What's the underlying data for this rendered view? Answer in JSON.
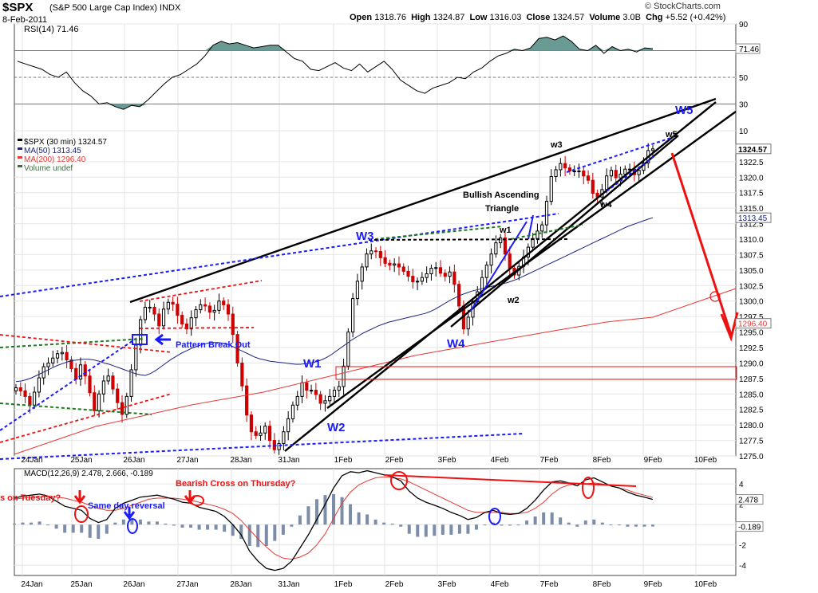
{
  "header": {
    "ticker": "$SPX",
    "name": "(S&P 500 Large Cap Index)",
    "exchange": "INDX",
    "date": "8-Feb-2011",
    "copyright": "© StockCharts.com",
    "open_label": "Open",
    "open": "1318.76",
    "high_label": "High",
    "high": "1324.87",
    "low_label": "Low",
    "low": "1316.03",
    "close_label": "Close",
    "close": "1324.57",
    "volume_label": "Volume",
    "volume": "3.0B",
    "chg_label": "Chg",
    "chg": "+5.52 (+0.42%)"
  },
  "colors": {
    "price_up": "#000000",
    "price_down": "#cc0000",
    "ma50": "#1a237e",
    "ma200": "#e53935",
    "rsi_fill": "#6a9a94",
    "annotation_blue": "#1a1aff",
    "annotation_red": "#ee1111"
  },
  "x_labels": [
    "24Jan",
    "25Jan",
    "26Jan",
    "27Jan",
    "28Jan",
    "31Jan",
    "1Feb",
    "2Feb",
    "3Feb",
    "4Feb",
    "7Feb",
    "8Feb",
    "9Feb",
    "10Feb"
  ],
  "chart_data": [
    {
      "type": "line",
      "panel": "rsi",
      "legend": "RSI(14) 71.46",
      "last_value_label": "71.46",
      "ylim": [
        10,
        90
      ],
      "y_ticks": [
        "90",
        "70",
        "50",
        "30",
        "10"
      ],
      "reference_lines": [
        70,
        50,
        30
      ],
      "values": [
        62,
        60,
        58,
        56,
        52,
        50,
        54,
        46,
        40,
        36,
        30,
        31,
        28,
        26,
        29,
        28,
        33,
        39,
        45,
        50,
        52,
        56,
        60,
        66,
        74,
        77,
        75,
        76,
        74,
        72,
        73,
        74,
        74,
        69,
        64,
        62,
        56,
        55,
        58,
        61,
        57,
        55,
        60,
        54,
        58,
        62,
        56,
        48,
        44,
        40,
        38,
        42,
        44,
        46,
        50,
        49,
        54,
        57,
        62,
        66,
        68,
        71,
        70,
        72,
        79,
        80,
        78,
        81,
        77,
        71,
        70,
        74,
        68,
        73,
        70,
        71,
        69,
        72,
        71.46
      ]
    },
    {
      "type": "candlestick",
      "panel": "price",
      "legend": [
        "$SPX (30 min) 1324.57",
        "MA(50) 1313.45",
        "MA(200) 1296.40",
        "Volume undef"
      ],
      "ylim": [
        1275,
        1327.5
      ],
      "y_ticks": [
        "1275.0",
        "1277.5",
        "1280.0",
        "1282.5",
        "1285.0",
        "1287.5",
        "1290.0",
        "1292.5",
        "1295.0",
        "1297.5",
        "1300.0",
        "1302.5",
        "1305.0",
        "1307.5",
        "1310.0",
        "1312.5",
        "1315.0",
        "1317.5",
        "1320.0",
        "1322.5"
      ],
      "price_tags": [
        {
          "label": "1324.57",
          "value": 1324.57,
          "style": "close"
        },
        {
          "label": "1313.45",
          "value": 1313.45,
          "style": "ma50"
        },
        {
          "label": "1296.40",
          "value": 1296.4,
          "style": "ma200"
        }
      ],
      "closes": [
        1286.0,
        1285.5,
        1284.6,
        1283.2,
        1285.3,
        1287.6,
        1289.4,
        1290.0,
        1290.8,
        1291.5,
        1291.7,
        1290.5,
        1289.1,
        1287.4,
        1289.7,
        1287.9,
        1285.2,
        1282.3,
        1285.0,
        1287.1,
        1287.9,
        1285.8,
        1283.6,
        1281.7,
        1284.6,
        1288.9,
        1292.9,
        1297.0,
        1299.0,
        1299.0,
        1297.9,
        1296.0,
        1298.7,
        1299.8,
        1299.5,
        1297.7,
        1296.3,
        1295.5,
        1297.3,
        1298.6,
        1299.4,
        1299.2,
        1298.2,
        1298.5,
        1300.0,
        1299.4,
        1297.9,
        1294.6,
        1290.0,
        1286.3,
        1281.6,
        1278.9,
        1278.3,
        1278.7,
        1279.8,
        1277.5,
        1276.0,
        1277.0,
        1278.9,
        1281.0,
        1283.2,
        1284.6,
        1286.8,
        1285.6,
        1285.6,
        1284.9,
        1283.5,
        1283.9,
        1284.6,
        1285.6,
        1286.2,
        1289.5,
        1295.0,
        1300.4,
        1303.2,
        1305.5,
        1307.6,
        1308.1,
        1308.0,
        1307.0,
        1306.1,
        1305.8,
        1306.0,
        1305.5,
        1304.8,
        1304.0,
        1303.1,
        1303.2,
        1303.8,
        1304.4,
        1305.3,
        1305.4,
        1304.5,
        1304.0,
        1304.7,
        1302.7,
        1299.2,
        1295.5,
        1297.4,
        1299.9,
        1301.5,
        1303.8,
        1305.8,
        1307.6,
        1309.4,
        1310.2,
        1307.6,
        1305.3,
        1304.2,
        1305.6,
        1307.1,
        1308.7,
        1310.1,
        1311.3,
        1312.3,
        1316.1,
        1320.1,
        1321.2,
        1322.2,
        1321.5,
        1321.0,
        1321.0,
        1321.0,
        1320.2,
        1319.5,
        1317.4,
        1316.8,
        1318.0,
        1320.2,
        1321.1,
        1319.9,
        1320.5,
        1321.3,
        1321.3,
        1320.4,
        1321.1,
        1322.3,
        1324.3,
        1324.57
      ],
      "ma50": [
        1287.0,
        1287.1,
        1287.3,
        1287.6,
        1288.0,
        1288.4,
        1288.8,
        1289.2,
        1289.6,
        1289.9,
        1290.2,
        1290.4,
        1290.5,
        1290.6,
        1290.6,
        1290.5,
        1290.3,
        1290.0,
        1289.8,
        1289.5,
        1289.2,
        1288.9,
        1288.6,
        1288.3,
        1288.1,
        1288.0,
        1288.3,
        1288.8,
        1289.4,
        1290.0,
        1290.6,
        1291.1,
        1291.6,
        1292.0,
        1292.4,
        1292.7,
        1293.0,
        1293.2,
        1293.3,
        1293.3,
        1293.2,
        1293.0,
        1292.6,
        1292.2,
        1291.8,
        1291.4,
        1291.0,
        1290.7,
        1290.5,
        1290.3,
        1290.2,
        1290.1,
        1290.0,
        1289.9,
        1289.8,
        1289.8,
        1289.9,
        1290.0,
        1290.2,
        1290.5,
        1290.9,
        1291.4,
        1292.0,
        1292.6,
        1293.2,
        1293.8,
        1294.3,
        1294.8,
        1295.2,
        1295.6,
        1296.0,
        1296.3,
        1296.6,
        1296.8,
        1297.0,
        1297.2,
        1297.4,
        1297.6,
        1297.8,
        1298.0,
        1298.3,
        1298.7,
        1299.2,
        1299.7,
        1300.2,
        1300.6,
        1301.0,
        1301.3,
        1301.6,
        1301.8,
        1302.0,
        1302.2,
        1302.4,
        1302.6,
        1302.8,
        1303.0,
        1303.3,
        1303.6,
        1304.0,
        1304.4,
        1304.8,
        1305.2,
        1305.6,
        1306.0,
        1306.4,
        1306.8,
        1307.2,
        1307.6,
        1308.0,
        1308.4,
        1308.8,
        1309.2,
        1309.6,
        1310.0,
        1310.4,
        1310.8,
        1311.2,
        1311.6,
        1312.0,
        1312.3,
        1312.6,
        1312.9,
        1313.2,
        1313.45
      ]
    },
    {
      "type": "line",
      "panel": "macd",
      "legend": [
        "MACD(12,26,9) 2.478, 2.666, -0.189"
      ],
      "last_value_labels": [
        "2.478",
        "-0.189"
      ],
      "ylim": [
        -5,
        5.5
      ],
      "y_ticks": [
        "4",
        "2",
        "0",
        "-2",
        "-4"
      ],
      "series": [
        {
          "name": "MACD(12,26,9)",
          "values": [
            2.6,
            2.8,
            2.9,
            3.0,
            2.8,
            2.3,
            1.8,
            1.6,
            1.4,
            0.6,
            0.2,
            0.5,
            1.6,
            2.1,
            2.4,
            2.7,
            2.8,
            2.9,
            2.7,
            2.5,
            2.2,
            2.1,
            1.7,
            1.5,
            1.3,
            0.8,
            0.0,
            -1.0,
            -2.6,
            -3.6,
            -4.3,
            -4.5,
            -4.3,
            -3.6,
            -2.3,
            -1.0,
            0.5,
            2.0,
            3.6,
            4.8,
            5.2,
            5.1,
            5.3,
            5.1,
            4.9,
            4.7,
            4.3,
            3.3,
            2.6,
            2.2,
            1.9,
            1.6,
            1.2,
            0.9,
            0.5,
            0.7,
            1.2,
            1.4,
            1.1,
            1.0,
            1.1,
            1.6,
            2.4,
            3.4,
            4.2,
            4.3,
            4.1,
            3.8,
            4.4,
            4.6,
            4.2,
            3.8,
            3.6,
            3.2,
            2.9,
            2.7,
            2.478
          ]
        },
        {
          "name": "Signal",
          "values": [
            2.5,
            2.6,
            2.7,
            2.7,
            2.8,
            2.7,
            2.6,
            2.4,
            2.2,
            1.9,
            1.6,
            1.4,
            1.4,
            1.6,
            1.9,
            2.2,
            2.5,
            2.6,
            2.6,
            2.6,
            2.5,
            2.4,
            2.2,
            2.0,
            1.8,
            1.5,
            1.1,
            0.4,
            -0.5,
            -1.4,
            -2.2,
            -2.9,
            -3.3,
            -3.4,
            -3.2,
            -2.8,
            -2.0,
            -0.9,
            0.6,
            2.1,
            3.2,
            3.9,
            4.3,
            4.6,
            4.7,
            4.6,
            4.5,
            4.2,
            3.8,
            3.4,
            3.0,
            2.6,
            2.2,
            1.8,
            1.4,
            1.2,
            1.2,
            1.2,
            1.2,
            1.1,
            1.1,
            1.2,
            1.6,
            2.2,
            3.0,
            3.6,
            3.9,
            4.0,
            4.0,
            4.1,
            4.0,
            3.8,
            3.6,
            3.4,
            3.1,
            2.9,
            2.666
          ]
        },
        {
          "name": "Histogram",
          "values": [
            0.1,
            0.2,
            0.2,
            0.3,
            0.0,
            -0.4,
            -0.8,
            -0.8,
            -0.8,
            -1.3,
            -1.4,
            -0.9,
            0.2,
            0.5,
            0.5,
            0.5,
            0.3,
            0.3,
            0.1,
            -0.1,
            -0.3,
            -0.3,
            -0.5,
            -0.5,
            -0.5,
            -0.7,
            -1.1,
            -1.4,
            -2.1,
            -2.2,
            -2.1,
            -1.6,
            -1.0,
            -0.2,
            0.9,
            1.8,
            2.5,
            2.9,
            3.0,
            2.7,
            2.0,
            1.2,
            1.0,
            0.5,
            0.2,
            0.1,
            -0.2,
            -0.9,
            -1.2,
            -1.2,
            -1.1,
            -1.0,
            -1.0,
            -0.9,
            -0.9,
            -0.5,
            0.0,
            0.2,
            -0.1,
            -0.1,
            0.0,
            0.4,
            0.8,
            1.2,
            1.2,
            0.7,
            0.2,
            -0.2,
            0.4,
            0.5,
            0.2,
            0.0,
            0.0,
            -0.2,
            -0.2,
            -0.2,
            -0.189
          ]
        }
      ]
    }
  ],
  "annotations": {
    "pattern_break_out": "Pattern Break Out",
    "bullish_triangle_1": "Bullish Ascending",
    "bullish_triangle_2": "Triangle",
    "same_day_reversal": "Same day reversal",
    "bearish_cross_thursday": "Bearish Cross on Thursday?",
    "cross_tuesday": "s on Tuesday?",
    "wave_W1": "W1",
    "wave_W2": "W2",
    "wave_W3": "W3",
    "wave_W4": "W4",
    "wave_W5": "W5",
    "wave_w1": "w1",
    "wave_w2": "w2",
    "wave_w3": "w3",
    "wave_w4": "w4",
    "wave_w5": "w5"
  }
}
